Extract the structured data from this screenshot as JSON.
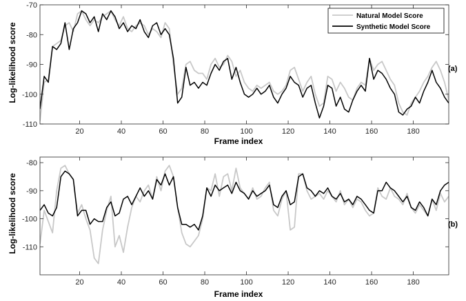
{
  "chart_data": [
    {
      "type": "line",
      "panel_label": "(a)",
      "xlabel": "Frame index",
      "ylabel": "Log-likelihood score",
      "xlim": [
        1,
        197
      ],
      "ylim": [
        -110,
        -70
      ],
      "xticks": [
        20,
        40,
        60,
        80,
        100,
        120,
        140,
        160,
        180
      ],
      "yticks": [
        -110,
        -100,
        -90,
        -80,
        -70
      ],
      "legend": "top-right",
      "grid": false,
      "series": [
        {
          "name": "Natural Model Score",
          "color": "#c8c8c8",
          "x": [
            1,
            3,
            5,
            7,
            9,
            11,
            13,
            15,
            17,
            19,
            21,
            23,
            25,
            27,
            29,
            31,
            33,
            35,
            37,
            39,
            41,
            43,
            45,
            47,
            49,
            51,
            53,
            55,
            57,
            59,
            61,
            63,
            65,
            67,
            69,
            71,
            73,
            75,
            77,
            79,
            81,
            83,
            85,
            87,
            89,
            91,
            93,
            95,
            97,
            99,
            101,
            103,
            105,
            107,
            109,
            111,
            113,
            115,
            117,
            119,
            121,
            123,
            125,
            127,
            129,
            131,
            133,
            135,
            137,
            139,
            141,
            143,
            145,
            147,
            149,
            151,
            153,
            155,
            157,
            159,
            161,
            163,
            165,
            167,
            169,
            171,
            173,
            175,
            177,
            179,
            181,
            183,
            185,
            187,
            189,
            191,
            193,
            195,
            197
          ],
          "y": [
            -109,
            -96,
            -95,
            -84,
            -83,
            -82,
            -77,
            -76,
            -79,
            -73,
            -72,
            -75,
            -77,
            -75,
            -76,
            -74,
            -73,
            -72,
            -75,
            -77,
            -74,
            -78,
            -79,
            -77,
            -76,
            -77,
            -80,
            -78,
            -79,
            -81,
            -76,
            -78,
            -90,
            -100,
            -98,
            -90,
            -89,
            -92,
            -93,
            -93,
            -95,
            -90,
            -88,
            -91,
            -90,
            -87,
            -89,
            -94,
            -92,
            -96,
            -98,
            -99,
            -97,
            -98,
            -97,
            -96,
            -99,
            -100,
            -99,
            -97,
            -92,
            -91,
            -95,
            -99,
            -96,
            -94,
            -100,
            -104,
            -103,
            -94,
            -95,
            -99,
            -96,
            -98,
            -101,
            -102,
            -98,
            -96,
            -97,
            -88,
            -92,
            -90,
            -89,
            -92,
            -95,
            -97,
            -103,
            -106,
            -107,
            -103,
            -101,
            -99,
            -96,
            -94,
            -91,
            -89,
            -92,
            -96,
            -102
          ]
        },
        {
          "name": "Synthetic Model Score",
          "color": "#000000",
          "x": [
            1,
            3,
            5,
            7,
            9,
            11,
            13,
            15,
            17,
            19,
            21,
            23,
            25,
            27,
            29,
            31,
            33,
            35,
            37,
            39,
            41,
            43,
            45,
            47,
            49,
            51,
            53,
            55,
            57,
            59,
            61,
            63,
            65,
            67,
            69,
            71,
            73,
            75,
            77,
            79,
            81,
            83,
            85,
            87,
            89,
            91,
            93,
            95,
            97,
            99,
            101,
            103,
            105,
            107,
            109,
            111,
            113,
            115,
            117,
            119,
            121,
            123,
            125,
            127,
            129,
            131,
            133,
            135,
            137,
            139,
            141,
            143,
            145,
            147,
            149,
            151,
            153,
            155,
            157,
            159,
            161,
            163,
            165,
            167,
            169,
            171,
            173,
            175,
            177,
            179,
            181,
            183,
            185,
            187,
            189,
            191,
            193,
            195,
            197
          ],
          "y": [
            -105,
            -94,
            -96,
            -84,
            -85,
            -83,
            -76,
            -85,
            -78,
            -76,
            -72,
            -73,
            -76,
            -74,
            -79,
            -73,
            -75,
            -72,
            -74,
            -78,
            -76,
            -79,
            -77,
            -78,
            -75,
            -79,
            -81,
            -77,
            -76,
            -80,
            -78,
            -80,
            -88,
            -103,
            -101,
            -91,
            -97,
            -96,
            -98,
            -96,
            -97,
            -93,
            -90,
            -92,
            -89,
            -88,
            -95,
            -91,
            -96,
            -100,
            -101,
            -100,
            -98,
            -100,
            -99,
            -97,
            -101,
            -103,
            -100,
            -98,
            -94,
            -96,
            -97,
            -101,
            -98,
            -97,
            -103,
            -108,
            -104,
            -97,
            -98,
            -104,
            -101,
            -105,
            -106,
            -102,
            -99,
            -97,
            -99,
            -88,
            -95,
            -92,
            -93,
            -95,
            -98,
            -100,
            -106,
            -107,
            -105,
            -104,
            -101,
            -103,
            -99,
            -96,
            -92,
            -96,
            -98,
            -101,
            -103
          ]
        }
      ]
    },
    {
      "type": "line",
      "panel_label": "(b)",
      "xlabel": "Frame index",
      "ylabel": "Log-likelihood score",
      "xlim": [
        1,
        197
      ],
      "ylim": [
        -120,
        -78
      ],
      "xticks": [
        20,
        40,
        60,
        80,
        100,
        120,
        140,
        160,
        180
      ],
      "yticks": [
        -110,
        -100,
        -90,
        -80
      ],
      "grid": false,
      "series": [
        {
          "name": "Natural Model Score",
          "color": "#c8c8c8",
          "x": [
            1,
            3,
            5,
            7,
            9,
            11,
            13,
            15,
            17,
            19,
            21,
            23,
            25,
            27,
            29,
            31,
            33,
            35,
            37,
            39,
            41,
            43,
            45,
            47,
            49,
            51,
            53,
            55,
            57,
            59,
            61,
            63,
            65,
            67,
            69,
            71,
            73,
            75,
            77,
            79,
            81,
            83,
            85,
            87,
            89,
            91,
            93,
            95,
            97,
            99,
            101,
            103,
            105,
            107,
            109,
            111,
            113,
            115,
            117,
            119,
            121,
            123,
            125,
            127,
            129,
            131,
            133,
            135,
            137,
            139,
            141,
            143,
            145,
            147,
            149,
            151,
            153,
            155,
            157,
            159,
            161,
            163,
            165,
            167,
            169,
            171,
            173,
            175,
            177,
            179,
            181,
            183,
            185,
            187,
            189,
            191,
            193,
            195,
            197
          ],
          "y": [
            -109,
            -97,
            -101,
            -105,
            -90,
            -82,
            -81,
            -84,
            -86,
            -98,
            -95,
            -100,
            -104,
            -114,
            -116,
            -104,
            -97,
            -92,
            -110,
            -106,
            -112,
            -103,
            -96,
            -92,
            -94,
            -90,
            -88,
            -93,
            -85,
            -90,
            -83,
            -81,
            -85,
            -96,
            -105,
            -109,
            -110,
            -108,
            -106,
            -100,
            -89,
            -90,
            -84,
            -92,
            -85,
            -84,
            -90,
            -82,
            -89,
            -91,
            -93,
            -89,
            -93,
            -92,
            -89,
            -87,
            -97,
            -99,
            -93,
            -90,
            -104,
            -103,
            -84,
            -84,
            -90,
            -93,
            -92,
            -91,
            -93,
            -90,
            -92,
            -94,
            -90,
            -95,
            -93,
            -96,
            -93,
            -94,
            -97,
            -99,
            -98,
            -89,
            -92,
            -93,
            -89,
            -92,
            -93,
            -95,
            -91,
            -96,
            -98,
            -95,
            -97,
            -99,
            -93,
            -97,
            -91,
            -94,
            -92
          ]
        },
        {
          "name": "Synthetic Model Score",
          "color": "#000000",
          "x": [
            1,
            3,
            5,
            7,
            9,
            11,
            13,
            15,
            17,
            19,
            21,
            23,
            25,
            27,
            29,
            31,
            33,
            35,
            37,
            39,
            41,
            43,
            45,
            47,
            49,
            51,
            53,
            55,
            57,
            59,
            61,
            63,
            65,
            67,
            69,
            71,
            73,
            75,
            77,
            79,
            81,
            83,
            85,
            87,
            89,
            91,
            93,
            95,
            97,
            99,
            101,
            103,
            105,
            107,
            109,
            111,
            113,
            115,
            117,
            119,
            121,
            123,
            125,
            127,
            129,
            131,
            133,
            135,
            137,
            139,
            141,
            143,
            145,
            147,
            149,
            151,
            153,
            155,
            157,
            159,
            161,
            163,
            165,
            167,
            169,
            171,
            173,
            175,
            177,
            179,
            181,
            183,
            185,
            187,
            189,
            191,
            193,
            195,
            197
          ],
          "y": [
            -97,
            -95,
            -98,
            -99,
            -96,
            -85,
            -83,
            -84,
            -86,
            -99,
            -97,
            -97,
            -102,
            -100,
            -101,
            -101,
            -96,
            -94,
            -99,
            -98,
            -93,
            -92,
            -95,
            -92,
            -89,
            -92,
            -90,
            -93,
            -86,
            -88,
            -84,
            -88,
            -85,
            -96,
            -102,
            -102,
            -103,
            -102,
            -104,
            -99,
            -89,
            -92,
            -88,
            -90,
            -89,
            -88,
            -91,
            -87,
            -90,
            -91,
            -93,
            -90,
            -92,
            -91,
            -90,
            -88,
            -95,
            -96,
            -92,
            -90,
            -95,
            -94,
            -85,
            -84,
            -89,
            -90,
            -92,
            -90,
            -91,
            -89,
            -92,
            -93,
            -91,
            -94,
            -93,
            -95,
            -92,
            -93,
            -95,
            -97,
            -98,
            -90,
            -90,
            -87,
            -89,
            -90,
            -92,
            -94,
            -92,
            -96,
            -97,
            -94,
            -96,
            -99,
            -93,
            -95,
            -90,
            -88,
            -87
          ]
        }
      ]
    }
  ]
}
